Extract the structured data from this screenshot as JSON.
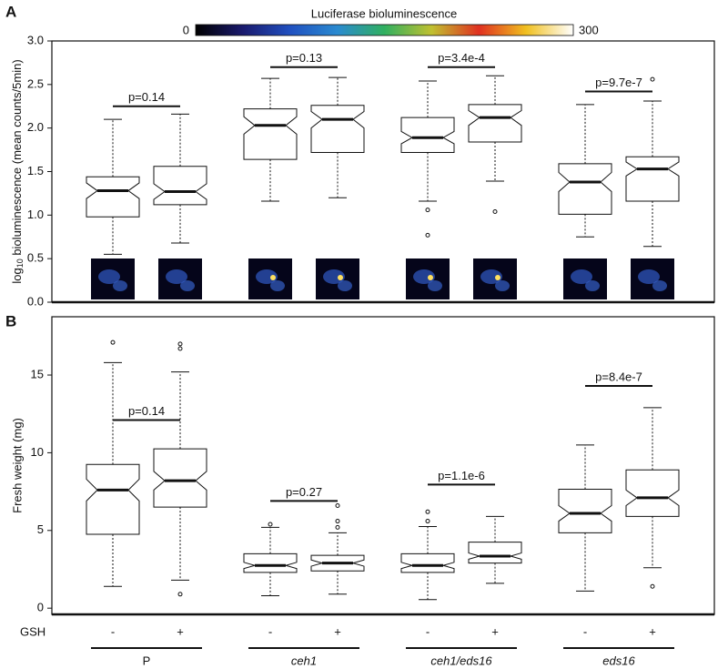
{
  "chart_data": [
    {
      "type": "box",
      "panel": "A",
      "ylabel_parts": [
        "log",
        "10",
        " bioluminescence (mean counts/5min)"
      ],
      "colorbar": {
        "label": "Luciferase bioluminescence",
        "ticks": [
          0,
          300
        ],
        "colors": [
          "#000000",
          "#1a1a6e",
          "#2050c0",
          "#2a8ad0",
          "#30b060",
          "#c0c030",
          "#e03020",
          "#f0c020",
          "#ffffff"
        ]
      },
      "ylim": [
        0,
        3
      ],
      "yticks": [
        {
          "value": 0,
          "label": "0.0"
        },
        0.5,
        {
          "value": 1,
          "label": "1.0"
        },
        1.5,
        {
          "value": 2,
          "label": "2.0"
        },
        2.5,
        {
          "value": 3,
          "label": "3.0"
        }
      ],
      "boxes": [
        {
          "whislo": 0.55,
          "q1": 0.98,
          "notch_lo": 1.19,
          "med": 1.28,
          "notch_hi": 1.37,
          "q3": 1.44,
          "whishi": 2.1,
          "fliers": []
        },
        {
          "whislo": 0.68,
          "q1": 1.12,
          "notch_lo": 1.18,
          "med": 1.27,
          "notch_hi": 1.36,
          "q3": 1.56,
          "whishi": 2.16,
          "fliers": []
        },
        {
          "whislo": 1.16,
          "q1": 1.64,
          "notch_lo": 1.93,
          "med": 2.03,
          "notch_hi": 2.13,
          "q3": 2.22,
          "whishi": 2.57,
          "fliers": []
        },
        {
          "whislo": 1.2,
          "q1": 1.72,
          "notch_lo": 2.0,
          "med": 2.1,
          "notch_hi": 2.19,
          "q3": 2.26,
          "whishi": 2.58,
          "fliers": []
        },
        {
          "whislo": 1.16,
          "q1": 1.72,
          "notch_lo": 1.82,
          "med": 1.89,
          "notch_hi": 1.96,
          "q3": 2.12,
          "whishi": 2.54,
          "fliers": [
            1.06,
            0.77
          ]
        },
        {
          "whislo": 1.39,
          "q1": 1.84,
          "notch_lo": 2.03,
          "med": 2.12,
          "notch_hi": 2.2,
          "q3": 2.27,
          "whishi": 2.6,
          "fliers": [
            1.04
          ]
        },
        {
          "whislo": 0.75,
          "q1": 1.01,
          "notch_lo": 1.27,
          "med": 1.38,
          "notch_hi": 1.49,
          "q3": 1.59,
          "whishi": 2.27,
          "fliers": []
        },
        {
          "whislo": 0.64,
          "q1": 1.16,
          "notch_lo": 1.45,
          "med": 1.53,
          "notch_hi": 1.61,
          "q3": 1.67,
          "whishi": 2.31,
          "fliers": [
            2.56
          ]
        }
      ],
      "annotations": [
        {
          "text": "p=0.14",
          "y": 2.25,
          "from": 0,
          "to": 1
        },
        {
          "text": "p=0.13",
          "y": 2.7,
          "from": 2,
          "to": 3
        },
        {
          "text": "p=3.4e-4",
          "y": 2.7,
          "from": 4,
          "to": 5
        },
        {
          "text": "p=9.7e-7",
          "y": 2.42,
          "from": 6,
          "to": 7
        }
      ]
    },
    {
      "type": "box",
      "panel": "B",
      "ylabel": "Fresh weight (mg)",
      "ylim": [
        -0.4,
        18.75
      ],
      "yticks": [
        0,
        5,
        10,
        15
      ],
      "boxes": [
        {
          "whislo": 1.4,
          "q1": 4.75,
          "notch_lo": 6.9,
          "med": 7.6,
          "notch_hi": 8.3,
          "q3": 9.25,
          "whishi": 15.8,
          "fliers": [
            17.1
          ]
        },
        {
          "whislo": 1.8,
          "q1": 6.5,
          "notch_lo": 7.6,
          "med": 8.2,
          "notch_hi": 8.8,
          "q3": 10.25,
          "whishi": 15.2,
          "fliers": [
            17.0,
            16.7,
            0.9
          ]
        },
        {
          "whislo": 0.8,
          "q1": 2.3,
          "notch_lo": 2.55,
          "med": 2.75,
          "notch_hi": 2.95,
          "q3": 3.5,
          "whishi": 5.2,
          "fliers": [
            5.4
          ]
        },
        {
          "whislo": 0.9,
          "q1": 2.4,
          "notch_lo": 2.7,
          "med": 2.9,
          "notch_hi": 3.1,
          "q3": 3.4,
          "whishi": 4.85,
          "fliers": [
            6.6,
            5.6,
            5.2
          ]
        },
        {
          "whislo": 0.55,
          "q1": 2.3,
          "notch_lo": 2.55,
          "med": 2.75,
          "notch_hi": 2.95,
          "q3": 3.5,
          "whishi": 5.25,
          "fliers": [
            6.2,
            5.6
          ]
        },
        {
          "whislo": 1.6,
          "q1": 2.9,
          "notch_lo": 3.15,
          "med": 3.35,
          "notch_hi": 3.55,
          "q3": 4.25,
          "whishi": 5.9,
          "fliers": []
        },
        {
          "whislo": 1.1,
          "q1": 4.85,
          "notch_lo": 5.6,
          "med": 6.1,
          "notch_hi": 6.6,
          "q3": 7.65,
          "whishi": 10.5,
          "fliers": []
        },
        {
          "whislo": 2.6,
          "q1": 5.9,
          "notch_lo": 6.6,
          "med": 7.1,
          "notch_hi": 7.6,
          "q3": 8.9,
          "whishi": 12.9,
          "fliers": [
            1.4
          ]
        }
      ],
      "annotations": [
        {
          "text": "p=0.14",
          "y": 12.1,
          "from": 0,
          "to": 1
        },
        {
          "text": "p=0.27",
          "y": 6.9,
          "from": 2,
          "to": 3
        },
        {
          "text": "p=1.1e-6",
          "y": 7.95,
          "from": 4,
          "to": 5
        },
        {
          "text": "p=8.4e-7",
          "y": 14.3,
          "from": 6,
          "to": 7
        }
      ],
      "xlabel": "GSH",
      "categories": [
        "-",
        "+",
        "-",
        "+",
        "-",
        "+",
        "-",
        "+"
      ],
      "groups": [
        "P",
        "ceh1",
        "ceh1/eds16",
        "eds16"
      ]
    }
  ]
}
